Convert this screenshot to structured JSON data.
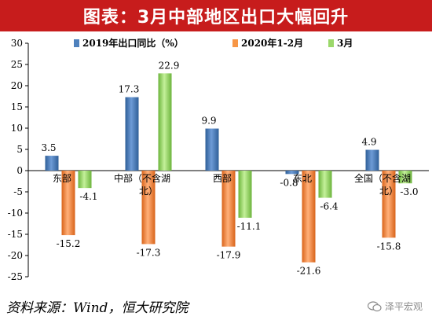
{
  "title": "图表：3月中部地区出口大幅回升",
  "source": "资料来源：Wind，恒大研究院",
  "watermark": "泽平宏观",
  "chart_data": {
    "type": "bar",
    "categories": [
      "东部",
      "中部（不含湖北）",
      "西部",
      "东北",
      "全国（不含湖北）"
    ],
    "category_lines": [
      [
        "东部"
      ],
      [
        "中部（不含湖",
        "北）"
      ],
      [
        "西部"
      ],
      [
        "东北"
      ],
      [
        "全国（不含湖",
        "北）"
      ]
    ],
    "series": [
      {
        "name": "2019年出口同比（%）",
        "color": "#4f81bd",
        "values": [
          3.5,
          17.3,
          9.9,
          -0.8,
          4.9
        ]
      },
      {
        "name": "2020年1-2月",
        "color": "#f79646",
        "values": [
          -15.2,
          -17.3,
          -17.9,
          -21.6,
          -15.8
        ]
      },
      {
        "name": "3月",
        "color": "#9bd86a",
        "values": [
          -4.1,
          22.9,
          -11.1,
          -6.4,
          -3.0
        ]
      }
    ],
    "ylim": [
      -25,
      30
    ],
    "yticks": [
      -25,
      -20,
      -15,
      -10,
      -5,
      0,
      5,
      10,
      15,
      20,
      25,
      30
    ],
    "legend_position": "top",
    "grid": false
  }
}
